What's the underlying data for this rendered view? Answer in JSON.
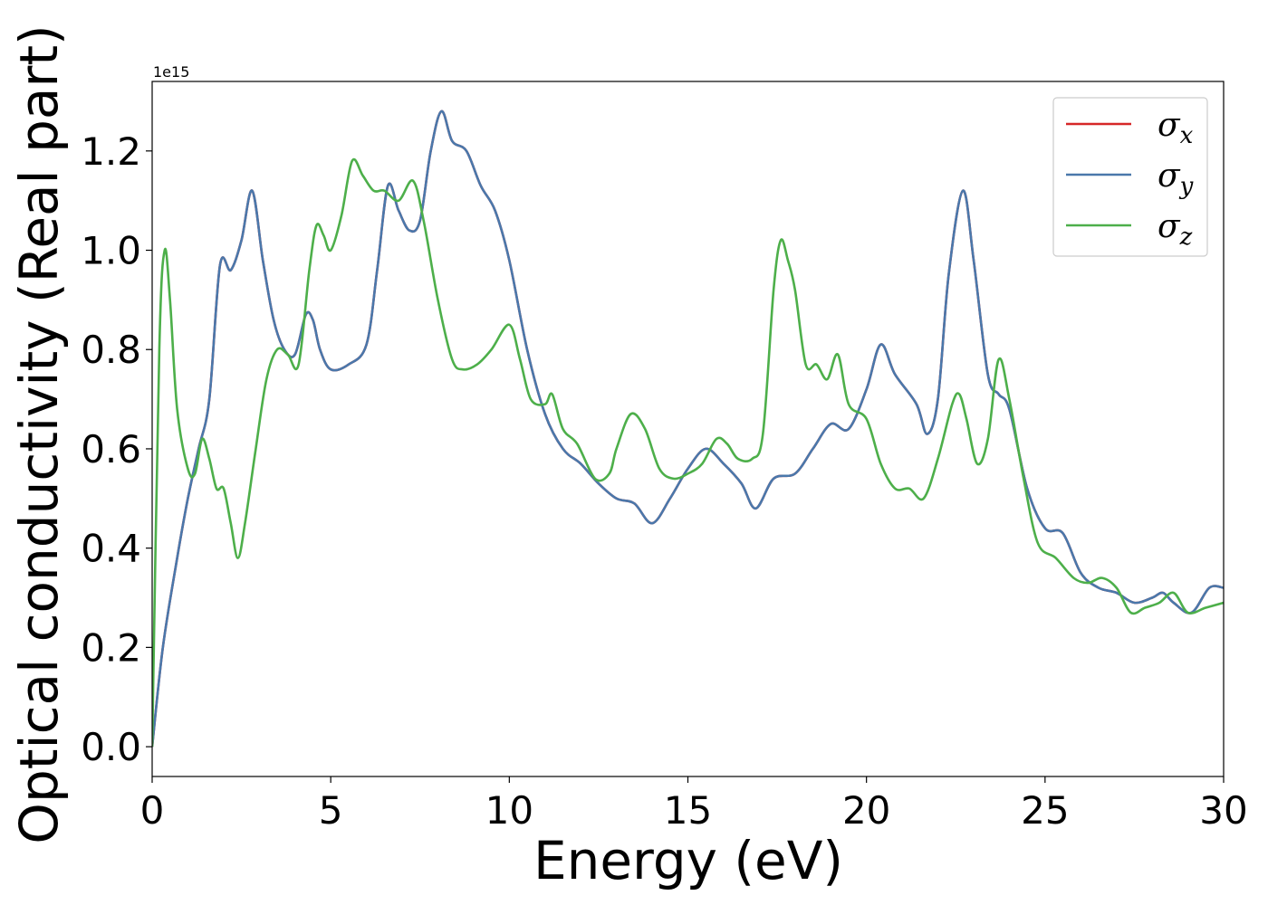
{
  "chart_data": {
    "type": "line",
    "title": "",
    "xlabel": "Energy (eV)",
    "ylabel": "Optical conductivity (Real part)",
    "offset_label": "1e15",
    "xlim": [
      0,
      30
    ],
    "ylim": [
      -0.06,
      1.34
    ],
    "xticks": [
      0,
      5,
      10,
      15,
      20,
      25,
      30
    ],
    "xtick_labels": [
      "0",
      "5",
      "10",
      "15",
      "20",
      "25",
      "30"
    ],
    "yticks": [
      0.0,
      0.2,
      0.4,
      0.6,
      0.8,
      1.0,
      1.2
    ],
    "ytick_labels": [
      "0.0",
      "0.2",
      "0.4",
      "0.6",
      "0.8",
      "1.0",
      "1.2"
    ],
    "grid": false,
    "legend_position": "top-right",
    "series": [
      {
        "name": "σx",
        "sub": "x",
        "color": "#d62728",
        "points": [
          [
            0.0,
            0.0
          ],
          [
            0.3,
            0.2
          ],
          [
            0.7,
            0.38
          ],
          [
            1.0,
            0.5
          ],
          [
            1.3,
            0.6
          ],
          [
            1.6,
            0.7
          ],
          [
            1.9,
            0.97
          ],
          [
            2.2,
            0.96
          ],
          [
            2.5,
            1.02
          ],
          [
            2.8,
            1.12
          ],
          [
            3.1,
            0.98
          ],
          [
            3.4,
            0.86
          ],
          [
            3.7,
            0.8
          ],
          [
            4.0,
            0.79
          ],
          [
            4.3,
            0.87
          ],
          [
            4.5,
            0.86
          ],
          [
            4.7,
            0.8
          ],
          [
            5.0,
            0.76
          ],
          [
            5.5,
            0.77
          ],
          [
            6.0,
            0.81
          ],
          [
            6.3,
            0.96
          ],
          [
            6.6,
            1.13
          ],
          [
            6.9,
            1.08
          ],
          [
            7.2,
            1.04
          ],
          [
            7.5,
            1.06
          ],
          [
            7.8,
            1.2
          ],
          [
            8.1,
            1.28
          ],
          [
            8.4,
            1.22
          ],
          [
            8.8,
            1.2
          ],
          [
            9.2,
            1.13
          ],
          [
            9.6,
            1.08
          ],
          [
            10.0,
            0.98
          ],
          [
            10.5,
            0.8
          ],
          [
            11.0,
            0.67
          ],
          [
            11.5,
            0.6
          ],
          [
            12.0,
            0.57
          ],
          [
            12.5,
            0.53
          ],
          [
            13.0,
            0.5
          ],
          [
            13.5,
            0.49
          ],
          [
            14.0,
            0.45
          ],
          [
            14.5,
            0.5
          ],
          [
            15.0,
            0.56
          ],
          [
            15.5,
            0.6
          ],
          [
            16.0,
            0.57
          ],
          [
            16.5,
            0.53
          ],
          [
            16.9,
            0.48
          ],
          [
            17.4,
            0.54
          ],
          [
            18.0,
            0.55
          ],
          [
            18.5,
            0.6
          ],
          [
            19.0,
            0.65
          ],
          [
            19.5,
            0.64
          ],
          [
            20.0,
            0.72
          ],
          [
            20.4,
            0.81
          ],
          [
            20.8,
            0.75
          ],
          [
            21.4,
            0.69
          ],
          [
            21.7,
            0.63
          ],
          [
            22.0,
            0.7
          ],
          [
            22.3,
            0.95
          ],
          [
            22.7,
            1.12
          ],
          [
            23.0,
            0.98
          ],
          [
            23.4,
            0.75
          ],
          [
            23.7,
            0.71
          ],
          [
            24.0,
            0.68
          ],
          [
            24.5,
            0.52
          ],
          [
            25.0,
            0.44
          ],
          [
            25.5,
            0.43
          ],
          [
            26.0,
            0.35
          ],
          [
            26.5,
            0.32
          ],
          [
            27.0,
            0.31
          ],
          [
            27.5,
            0.29
          ],
          [
            28.0,
            0.3
          ],
          [
            28.3,
            0.31
          ],
          [
            28.6,
            0.29
          ],
          [
            29.1,
            0.27
          ],
          [
            29.6,
            0.32
          ],
          [
            30.0,
            0.32
          ]
        ]
      },
      {
        "name": "σy",
        "sub": "y",
        "color": "#4a78ab",
        "points": [
          [
            0.0,
            0.0
          ],
          [
            0.3,
            0.2
          ],
          [
            0.7,
            0.38
          ],
          [
            1.0,
            0.5
          ],
          [
            1.3,
            0.6
          ],
          [
            1.6,
            0.7
          ],
          [
            1.9,
            0.97
          ],
          [
            2.2,
            0.96
          ],
          [
            2.5,
            1.02
          ],
          [
            2.8,
            1.12
          ],
          [
            3.1,
            0.98
          ],
          [
            3.4,
            0.86
          ],
          [
            3.7,
            0.8
          ],
          [
            4.0,
            0.79
          ],
          [
            4.3,
            0.87
          ],
          [
            4.5,
            0.86
          ],
          [
            4.7,
            0.8
          ],
          [
            5.0,
            0.76
          ],
          [
            5.5,
            0.77
          ],
          [
            6.0,
            0.81
          ],
          [
            6.3,
            0.96
          ],
          [
            6.6,
            1.13
          ],
          [
            6.9,
            1.08
          ],
          [
            7.2,
            1.04
          ],
          [
            7.5,
            1.06
          ],
          [
            7.8,
            1.2
          ],
          [
            8.1,
            1.28
          ],
          [
            8.4,
            1.22
          ],
          [
            8.8,
            1.2
          ],
          [
            9.2,
            1.13
          ],
          [
            9.6,
            1.08
          ],
          [
            10.0,
            0.98
          ],
          [
            10.5,
            0.8
          ],
          [
            11.0,
            0.67
          ],
          [
            11.5,
            0.6
          ],
          [
            12.0,
            0.57
          ],
          [
            12.5,
            0.53
          ],
          [
            13.0,
            0.5
          ],
          [
            13.5,
            0.49
          ],
          [
            14.0,
            0.45
          ],
          [
            14.5,
            0.5
          ],
          [
            15.0,
            0.56
          ],
          [
            15.5,
            0.6
          ],
          [
            16.0,
            0.57
          ],
          [
            16.5,
            0.53
          ],
          [
            16.9,
            0.48
          ],
          [
            17.4,
            0.54
          ],
          [
            18.0,
            0.55
          ],
          [
            18.5,
            0.6
          ],
          [
            19.0,
            0.65
          ],
          [
            19.5,
            0.64
          ],
          [
            20.0,
            0.72
          ],
          [
            20.4,
            0.81
          ],
          [
            20.8,
            0.75
          ],
          [
            21.4,
            0.69
          ],
          [
            21.7,
            0.63
          ],
          [
            22.0,
            0.7
          ],
          [
            22.3,
            0.95
          ],
          [
            22.7,
            1.12
          ],
          [
            23.0,
            0.98
          ],
          [
            23.4,
            0.75
          ],
          [
            23.7,
            0.71
          ],
          [
            24.0,
            0.68
          ],
          [
            24.5,
            0.52
          ],
          [
            25.0,
            0.44
          ],
          [
            25.5,
            0.43
          ],
          [
            26.0,
            0.35
          ],
          [
            26.5,
            0.32
          ],
          [
            27.0,
            0.31
          ],
          [
            27.5,
            0.29
          ],
          [
            28.0,
            0.3
          ],
          [
            28.3,
            0.31
          ],
          [
            28.6,
            0.29
          ],
          [
            29.1,
            0.27
          ],
          [
            29.6,
            0.32
          ],
          [
            30.0,
            0.32
          ]
        ]
      },
      {
        "name": "σz",
        "sub": "z",
        "color": "#4daf4a",
        "points": [
          [
            0.0,
            0.0
          ],
          [
            0.2,
            0.8
          ],
          [
            0.35,
            1.0
          ],
          [
            0.5,
            0.9
          ],
          [
            0.7,
            0.68
          ],
          [
            1.0,
            0.56
          ],
          [
            1.2,
            0.55
          ],
          [
            1.4,
            0.62
          ],
          [
            1.6,
            0.58
          ],
          [
            1.8,
            0.52
          ],
          [
            2.0,
            0.52
          ],
          [
            2.2,
            0.45
          ],
          [
            2.4,
            0.38
          ],
          [
            2.6,
            0.45
          ],
          [
            2.9,
            0.6
          ],
          [
            3.2,
            0.74
          ],
          [
            3.5,
            0.8
          ],
          [
            3.8,
            0.79
          ],
          [
            4.1,
            0.77
          ],
          [
            4.4,
            0.96
          ],
          [
            4.6,
            1.05
          ],
          [
            4.8,
            1.03
          ],
          [
            5.0,
            1.0
          ],
          [
            5.3,
            1.07
          ],
          [
            5.6,
            1.18
          ],
          [
            5.9,
            1.15
          ],
          [
            6.2,
            1.12
          ],
          [
            6.5,
            1.12
          ],
          [
            6.9,
            1.1
          ],
          [
            7.3,
            1.14
          ],
          [
            7.6,
            1.06
          ],
          [
            8.0,
            0.9
          ],
          [
            8.4,
            0.78
          ],
          [
            8.7,
            0.76
          ],
          [
            9.1,
            0.77
          ],
          [
            9.5,
            0.8
          ],
          [
            10.0,
            0.85
          ],
          [
            10.3,
            0.78
          ],
          [
            10.6,
            0.7
          ],
          [
            11.0,
            0.69
          ],
          [
            11.2,
            0.71
          ],
          [
            11.5,
            0.64
          ],
          [
            11.9,
            0.61
          ],
          [
            12.4,
            0.54
          ],
          [
            12.8,
            0.55
          ],
          [
            13.0,
            0.6
          ],
          [
            13.4,
            0.67
          ],
          [
            13.8,
            0.64
          ],
          [
            14.2,
            0.56
          ],
          [
            14.6,
            0.54
          ],
          [
            15.0,
            0.55
          ],
          [
            15.4,
            0.57
          ],
          [
            15.8,
            0.62
          ],
          [
            16.1,
            0.61
          ],
          [
            16.4,
            0.58
          ],
          [
            16.8,
            0.58
          ],
          [
            17.1,
            0.63
          ],
          [
            17.4,
            0.92
          ],
          [
            17.6,
            1.02
          ],
          [
            17.8,
            0.98
          ],
          [
            18.0,
            0.92
          ],
          [
            18.3,
            0.77
          ],
          [
            18.6,
            0.77
          ],
          [
            18.9,
            0.74
          ],
          [
            19.2,
            0.79
          ],
          [
            19.5,
            0.69
          ],
          [
            20.0,
            0.66
          ],
          [
            20.4,
            0.57
          ],
          [
            20.8,
            0.52
          ],
          [
            21.2,
            0.52
          ],
          [
            21.6,
            0.5
          ],
          [
            22.0,
            0.58
          ],
          [
            22.4,
            0.69
          ],
          [
            22.6,
            0.71
          ],
          [
            22.8,
            0.66
          ],
          [
            23.1,
            0.57
          ],
          [
            23.4,
            0.62
          ],
          [
            23.7,
            0.78
          ],
          [
            24.0,
            0.7
          ],
          [
            24.4,
            0.54
          ],
          [
            24.8,
            0.41
          ],
          [
            25.3,
            0.38
          ],
          [
            25.8,
            0.34
          ],
          [
            26.2,
            0.33
          ],
          [
            26.6,
            0.34
          ],
          [
            27.0,
            0.32
          ],
          [
            27.4,
            0.27
          ],
          [
            27.8,
            0.28
          ],
          [
            28.2,
            0.29
          ],
          [
            28.6,
            0.31
          ],
          [
            29.0,
            0.27
          ],
          [
            29.5,
            0.28
          ],
          [
            30.0,
            0.29
          ]
        ]
      }
    ]
  }
}
